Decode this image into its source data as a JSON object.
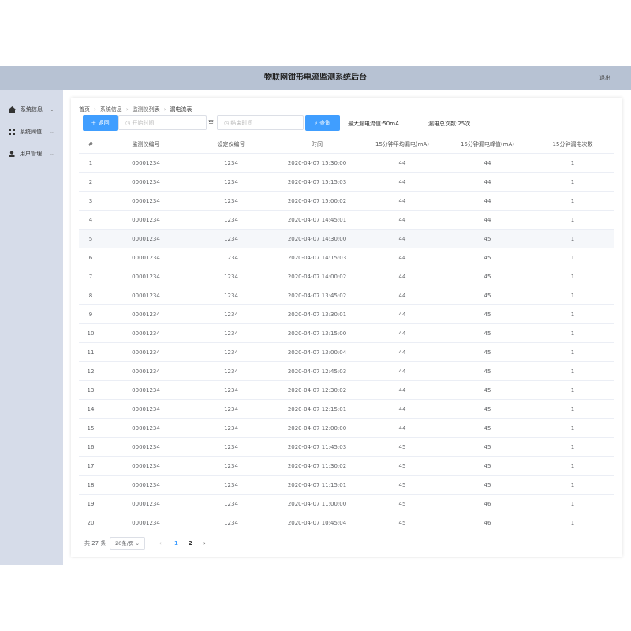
{
  "header": {
    "title": "物联网钳形电流监测系统后台",
    "logout": "退出"
  },
  "menu": [
    "系统信息",
    "系统阈值",
    "用户管理"
  ],
  "breadcrumb": [
    "首页",
    "系统信息",
    "监测仪列表",
    "漏电流表"
  ],
  "toolbar": {
    "back": "返回",
    "start_placeholder": "开始时间",
    "to": "至",
    "end_placeholder": "结束时间",
    "query": "查询",
    "max_current": "最大漏电流值:50mA",
    "total_count": "漏电总次数:25次"
  },
  "table": {
    "columns": [
      "#",
      "监测仪编号",
      "设定仪编号",
      "时间",
      "15分钟平均漏电(mA)",
      "15分钟漏电峰值(mA)",
      "15分钟漏电次数"
    ],
    "rows": [
      [
        1,
        "00001234",
        1234,
        "2020-04-07 15:30:00",
        44,
        44,
        1
      ],
      [
        2,
        "00001234",
        1234,
        "2020-04-07 15:15:03",
        44,
        44,
        1
      ],
      [
        3,
        "00001234",
        1234,
        "2020-04-07 15:00:02",
        44,
        44,
        1
      ],
      [
        4,
        "00001234",
        1234,
        "2020-04-07 14:45:01",
        44,
        44,
        1
      ],
      [
        5,
        "00001234",
        1234,
        "2020-04-07 14:30:00",
        44,
        45,
        1
      ],
      [
        6,
        "00001234",
        1234,
        "2020-04-07 14:15:03",
        44,
        45,
        1
      ],
      [
        7,
        "00001234",
        1234,
        "2020-04-07 14:00:02",
        44,
        45,
        1
      ],
      [
        8,
        "00001234",
        1234,
        "2020-04-07 13:45:02",
        44,
        45,
        1
      ],
      [
        9,
        "00001234",
        1234,
        "2020-04-07 13:30:01",
        44,
        45,
        1
      ],
      [
        10,
        "00001234",
        1234,
        "2020-04-07 13:15:00",
        44,
        45,
        1
      ],
      [
        11,
        "00001234",
        1234,
        "2020-04-07 13:00:04",
        44,
        45,
        1
      ],
      [
        12,
        "00001234",
        1234,
        "2020-04-07 12:45:03",
        44,
        45,
        1
      ],
      [
        13,
        "00001234",
        1234,
        "2020-04-07 12:30:02",
        44,
        45,
        1
      ],
      [
        14,
        "00001234",
        1234,
        "2020-04-07 12:15:01",
        44,
        45,
        1
      ],
      [
        15,
        "00001234",
        1234,
        "2020-04-07 12:00:00",
        44,
        45,
        1
      ],
      [
        16,
        "00001234",
        1234,
        "2020-04-07 11:45:03",
        45,
        45,
        1
      ],
      [
        17,
        "00001234",
        1234,
        "2020-04-07 11:30:02",
        45,
        45,
        1
      ],
      [
        18,
        "00001234",
        1234,
        "2020-04-07 11:15:01",
        45,
        45,
        1
      ],
      [
        19,
        "00001234",
        1234,
        "2020-04-07 11:00:00",
        45,
        46,
        1
      ],
      [
        20,
        "00001234",
        1234,
        "2020-04-07 10:45:04",
        45,
        46,
        1
      ]
    ]
  },
  "pagination": {
    "total": "共 27 条",
    "page_size": "20条/页",
    "pages": [
      1,
      2
    ]
  }
}
